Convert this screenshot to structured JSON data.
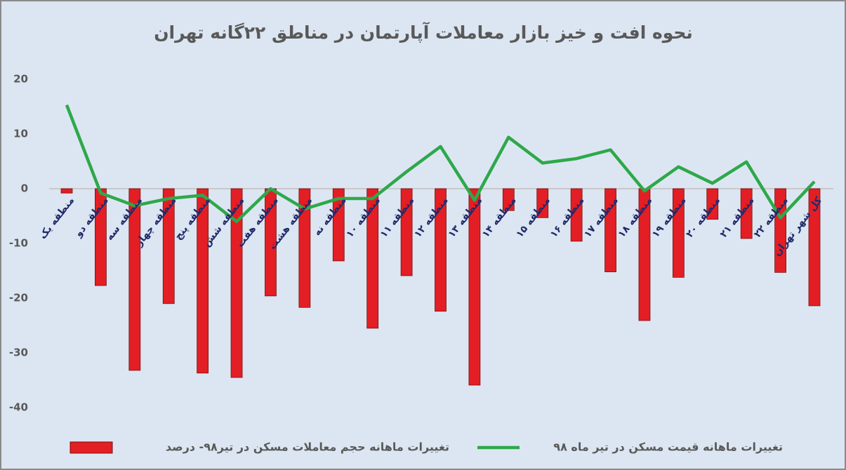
{
  "chart_data": {
    "type": "bar_line",
    "title": "نحوه افت و خیز بازار معاملات آپارتمان در مناطق ۲۲گانه تهران",
    "categories": [
      "منطقه یک",
      "منطقه دو",
      "منطقه سه",
      "منطقه چهار",
      "منطقه پنج",
      "منطقه شش",
      "منطقه هفت",
      "منطقه هشت",
      "منطقه نه",
      "منطقه ۱۰",
      "منطقه ۱۱",
      "منطقه ۱۲",
      "منطقه ۱۳",
      "منطقه ۱۴",
      "منطقه ۱۵",
      "منطقه ۱۶",
      "منطقه ۱۷",
      "منطقه ۱۸",
      "منطقه ۱۹",
      "منطقه ۲۰",
      "منطقه ۲۱",
      "منطقه ۲۲",
      "کل شهر تهران"
    ],
    "series": [
      {
        "name": "تغییرات ماهانه حجم معاملات مسکن در تیر۹۸- درصد",
        "type": "bar",
        "color": "#e31e24",
        "values": [
          -0.8,
          -17.7,
          -33.2,
          -21.0,
          -33.7,
          -34.5,
          -19.6,
          -21.7,
          -13.2,
          -25.5,
          -15.9,
          -22.4,
          -35.9,
          -4.0,
          -5.3,
          -9.6,
          -15.2,
          -24.1,
          -16.2,
          -5.6,
          -9.1,
          -15.3,
          -21.4
        ]
      },
      {
        "name": "تغییرات ماهانه قیمت مسکن در تیر ماه ۹۸",
        "type": "line",
        "color": "#2ea84a",
        "values": [
          15.3,
          -0.8,
          -3.1,
          -1.8,
          -1.2,
          -6.0,
          0,
          -3.7,
          -1.8,
          -1.8,
          3.1,
          7.7,
          -2.1,
          9.4,
          4.7,
          5.5,
          7.1,
          -0.4,
          4.0,
          1.0,
          4.9,
          -5.3,
          1.3
        ]
      }
    ],
    "ylim": [
      -40,
      20
    ],
    "yticks": [
      20,
      10,
      0,
      -10,
      -20,
      -30,
      -40
    ],
    "legend": "bottom"
  }
}
